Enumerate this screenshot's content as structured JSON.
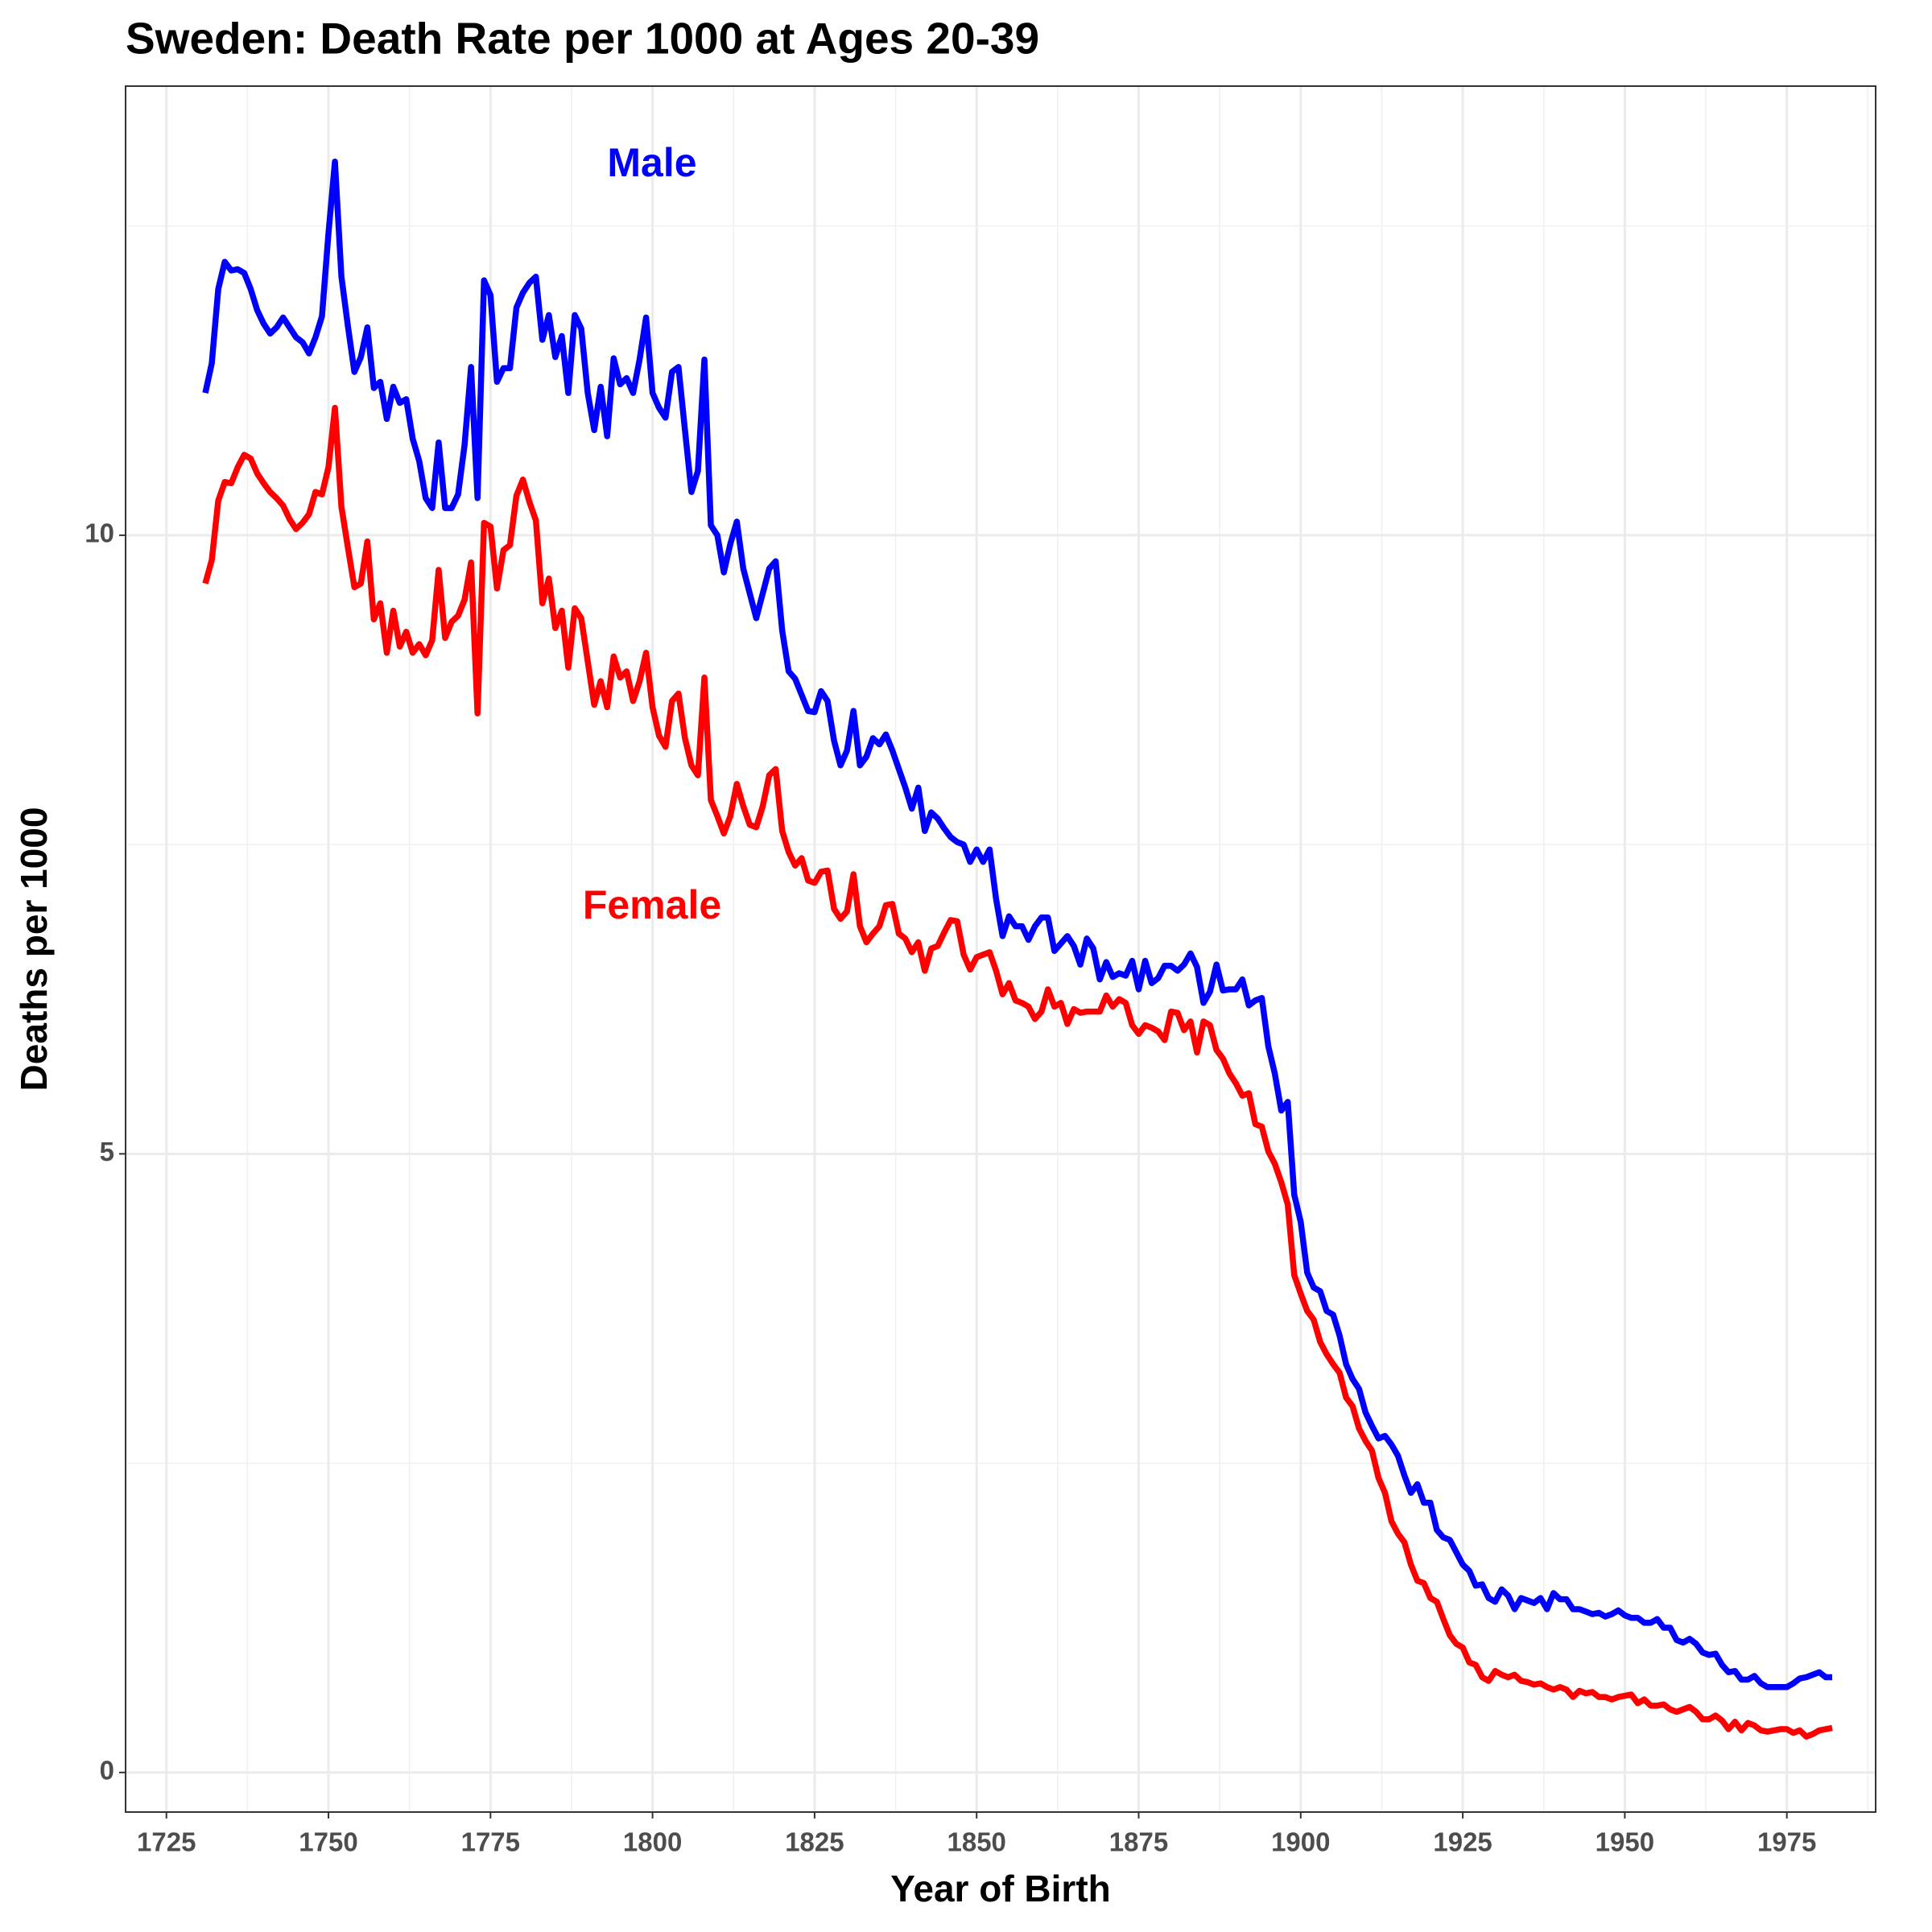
{
  "chart_data": {
    "type": "line",
    "title": "Sweden: Death Rate per 1000 at Ages 20-39",
    "x_label": "Year of Birth",
    "y_label": "Deaths per 1000",
    "xlim": [
      1718.7,
      1988.7
    ],
    "ylim": [
      -0.32,
      13.63
    ],
    "xticks": [
      1725,
      1750,
      1775,
      1800,
      1825,
      1850,
      1875,
      1900,
      1925,
      1950,
      1975
    ],
    "yticks": [
      0,
      5,
      10
    ],
    "grid": true,
    "x": [
      1731,
      1732,
      1733,
      1734,
      1735,
      1736,
      1737,
      1738,
      1739,
      1740,
      1741,
      1742,
      1743,
      1744,
      1745,
      1746,
      1747,
      1748,
      1749,
      1750,
      1751,
      1752,
      1753,
      1754,
      1755,
      1756,
      1757,
      1758,
      1759,
      1760,
      1761,
      1762,
      1763,
      1764,
      1765,
      1766,
      1767,
      1768,
      1769,
      1770,
      1771,
      1772,
      1773,
      1774,
      1775,
      1776,
      1777,
      1778,
      1779,
      1780,
      1781,
      1782,
      1783,
      1784,
      1785,
      1786,
      1787,
      1788,
      1789,
      1790,
      1791,
      1792,
      1793,
      1794,
      1795,
      1796,
      1797,
      1798,
      1799,
      1800,
      1801,
      1802,
      1803,
      1804,
      1805,
      1806,
      1807,
      1808,
      1809,
      1810,
      1811,
      1812,
      1813,
      1814,
      1815,
      1816,
      1817,
      1818,
      1819,
      1820,
      1821,
      1822,
      1823,
      1824,
      1825,
      1826,
      1827,
      1828,
      1829,
      1830,
      1831,
      1832,
      1833,
      1834,
      1835,
      1836,
      1837,
      1838,
      1839,
      1840,
      1841,
      1842,
      1843,
      1844,
      1845,
      1846,
      1847,
      1848,
      1849,
      1850,
      1851,
      1852,
      1853,
      1854,
      1855,
      1856,
      1857,
      1858,
      1859,
      1860,
      1861,
      1862,
      1863,
      1864,
      1865,
      1866,
      1867,
      1868,
      1869,
      1870,
      1871,
      1872,
      1873,
      1874,
      1875,
      1876,
      1877,
      1878,
      1879,
      1880,
      1881,
      1882,
      1883,
      1884,
      1885,
      1886,
      1887,
      1888,
      1889,
      1890,
      1891,
      1892,
      1893,
      1894,
      1895,
      1896,
      1897,
      1898,
      1899,
      1900,
      1901,
      1902,
      1903,
      1904,
      1905,
      1906,
      1907,
      1908,
      1909,
      1910,
      1911,
      1912,
      1913,
      1914,
      1915,
      1916,
      1917,
      1918,
      1919,
      1920,
      1921,
      1922,
      1923,
      1924,
      1925,
      1926,
      1927,
      1928,
      1929,
      1930,
      1931,
      1932,
      1933,
      1934,
      1935,
      1936,
      1937,
      1938,
      1939,
      1940,
      1941,
      1942,
      1943,
      1944,
      1945,
      1946,
      1947,
      1948,
      1949,
      1950,
      1951,
      1952,
      1953,
      1954,
      1955,
      1956,
      1957,
      1958,
      1959,
      1960,
      1961,
      1962,
      1963,
      1964,
      1965,
      1966,
      1967,
      1968,
      1969,
      1970,
      1971,
      1972,
      1973,
      1974,
      1975,
      1976,
      1977,
      1978,
      1979,
      1980,
      1981,
      1982
    ],
    "series": [
      {
        "name": "Male",
        "color": "#0000ff",
        "values": [
          11.15,
          11.39,
          11.99,
          12.21,
          12.14,
          12.15,
          12.12,
          11.99,
          11.82,
          11.71,
          11.63,
          11.68,
          11.76,
          11.68,
          11.6,
          11.56,
          11.47,
          11.6,
          11.77,
          12.44,
          13.02,
          12.09,
          11.69,
          11.32,
          11.44,
          11.68,
          11.19,
          11.24,
          10.94,
          11.2,
          11.07,
          11.1,
          10.78,
          10.6,
          10.3,
          10.22,
          10.75,
          10.22,
          10.22,
          10.33,
          10.73,
          11.36,
          10.3,
          12.06,
          11.94,
          11.24,
          11.35,
          11.35,
          11.84,
          11.96,
          12.04,
          12.09,
          11.58,
          11.78,
          11.44,
          11.61,
          11.15,
          11.78,
          11.67,
          11.15,
          10.85,
          11.2,
          10.8,
          11.43,
          11.22,
          11.27,
          11.15,
          11.42,
          11.76,
          11.15,
          11.03,
          10.95,
          11.32,
          11.36,
          10.85,
          10.35,
          10.52,
          11.42,
          10.08,
          10.0,
          9.7,
          9.93,
          10.11,
          9.73,
          9.53,
          9.33,
          9.53,
          9.73,
          9.79,
          9.23,
          8.9,
          8.84,
          8.71,
          8.58,
          8.57,
          8.74,
          8.66,
          8.34,
          8.14,
          8.26,
          8.58,
          8.14,
          8.21,
          8.36,
          8.31,
          8.39,
          8.26,
          8.11,
          7.96,
          7.79,
          7.96,
          7.61,
          7.76,
          7.71,
          7.63,
          7.56,
          7.52,
          7.5,
          7.36,
          7.46,
          7.36,
          7.46,
          7.06,
          6.76,
          6.92,
          6.84,
          6.84,
          6.73,
          6.84,
          6.91,
          6.91,
          6.64,
          6.7,
          6.76,
          6.68,
          6.53,
          6.74,
          6.66,
          6.41,
          6.55,
          6.43,
          6.46,
          6.44,
          6.56,
          6.33,
          6.56,
          6.38,
          6.42,
          6.52,
          6.52,
          6.48,
          6.53,
          6.62,
          6.51,
          6.22,
          6.31,
          6.53,
          6.32,
          6.33,
          6.33,
          6.41,
          6.2,
          6.24,
          6.26,
          5.87,
          5.65,
          5.35,
          5.42,
          4.67,
          4.45,
          4.04,
          3.92,
          3.89,
          3.73,
          3.7,
          3.53,
          3.3,
          3.18,
          3.1,
          2.91,
          2.8,
          2.7,
          2.72,
          2.65,
          2.56,
          2.4,
          2.26,
          2.33,
          2.18,
          2.18,
          1.96,
          1.9,
          1.88,
          1.78,
          1.68,
          1.63,
          1.51,
          1.52,
          1.41,
          1.38,
          1.48,
          1.43,
          1.32,
          1.41,
          1.39,
          1.37,
          1.41,
          1.32,
          1.45,
          1.4,
          1.4,
          1.32,
          1.32,
          1.3,
          1.28,
          1.29,
          1.26,
          1.28,
          1.31,
          1.27,
          1.25,
          1.25,
          1.21,
          1.21,
          1.24,
          1.17,
          1.17,
          1.07,
          1.05,
          1.08,
          1.04,
          0.97,
          0.95,
          0.96,
          0.87,
          0.81,
          0.82,
          0.75,
          0.75,
          0.78,
          0.72,
          0.69,
          0.69,
          0.69,
          0.69,
          0.72,
          0.76,
          0.77,
          0.79,
          0.81,
          0.77,
          0.77
        ]
      },
      {
        "name": "Female",
        "color": "#ff0000",
        "values": [
          9.61,
          9.8,
          10.28,
          10.43,
          10.42,
          10.55,
          10.65,
          10.62,
          10.5,
          10.42,
          10.35,
          10.3,
          10.24,
          10.13,
          10.05,
          10.1,
          10.17,
          10.35,
          10.33,
          10.55,
          11.03,
          10.23,
          9.9,
          9.58,
          9.61,
          9.95,
          9.32,
          9.45,
          9.05,
          9.39,
          9.1,
          9.22,
          9.05,
          9.12,
          9.03,
          9.15,
          9.72,
          9.17,
          9.3,
          9.35,
          9.48,
          9.78,
          8.56,
          10.1,
          10.07,
          9.57,
          9.88,
          9.92,
          10.32,
          10.45,
          10.27,
          10.12,
          9.45,
          9.65,
          9.25,
          9.39,
          8.93,
          9.41,
          9.33,
          8.98,
          8.63,
          8.82,
          8.61,
          9.02,
          8.85,
          8.9,
          8.66,
          8.82,
          9.05,
          8.61,
          8.38,
          8.29,
          8.66,
          8.72,
          8.36,
          8.14,
          8.06,
          8.85,
          7.86,
          7.73,
          7.59,
          7.73,
          7.99,
          7.81,
          7.66,
          7.64,
          7.81,
          8.06,
          8.11,
          7.61,
          7.44,
          7.33,
          7.39,
          7.21,
          7.19,
          7.28,
          7.29,
          6.98,
          6.9,
          6.96,
          7.26,
          6.84,
          6.71,
          6.78,
          6.84,
          7.01,
          7.02,
          6.78,
          6.74,
          6.63,
          6.71,
          6.48,
          6.66,
          6.68,
          6.79,
          6.89,
          6.88,
          6.61,
          6.49,
          6.59,
          6.61,
          6.63,
          6.48,
          6.29,
          6.38,
          6.24,
          6.22,
          6.19,
          6.09,
          6.15,
          6.33,
          6.19,
          6.22,
          6.05,
          6.17,
          6.14,
          6.15,
          6.15,
          6.15,
          6.28,
          6.19,
          6.25,
          6.22,
          6.04,
          5.97,
          6.04,
          6.02,
          5.99,
          5.92,
          6.15,
          6.14,
          6.0,
          6.07,
          5.82,
          6.07,
          6.04,
          5.84,
          5.77,
          5.65,
          5.57,
          5.47,
          5.49,
          5.24,
          5.22,
          5.02,
          4.92,
          4.77,
          4.59,
          4.02,
          3.87,
          3.73,
          3.66,
          3.48,
          3.38,
          3.3,
          3.23,
          3.03,
          2.96,
          2.78,
          2.68,
          2.6,
          2.38,
          2.26,
          2.03,
          1.93,
          1.86,
          1.68,
          1.55,
          1.53,
          1.41,
          1.38,
          1.24,
          1.11,
          1.04,
          1.01,
          0.89,
          0.87,
          0.77,
          0.74,
          0.82,
          0.79,
          0.77,
          0.79,
          0.74,
          0.73,
          0.71,
          0.72,
          0.69,
          0.67,
          0.69,
          0.67,
          0.61,
          0.66,
          0.64,
          0.65,
          0.61,
          0.61,
          0.59,
          0.61,
          0.62,
          0.63,
          0.56,
          0.59,
          0.54,
          0.54,
          0.55,
          0.51,
          0.49,
          0.51,
          0.53,
          0.49,
          0.43,
          0.43,
          0.46,
          0.42,
          0.35,
          0.41,
          0.34,
          0.4,
          0.38,
          0.34,
          0.33,
          0.34,
          0.35,
          0.35,
          0.32,
          0.34,
          0.29,
          0.31,
          0.34,
          0.35,
          0.36
        ]
      }
    ]
  }
}
